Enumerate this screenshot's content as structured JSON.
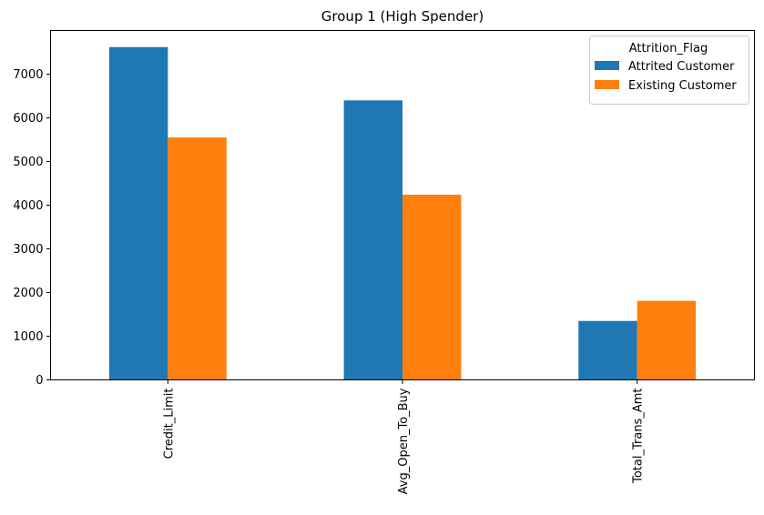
{
  "chart_data": {
    "type": "bar",
    "title": "Group 1 (High Spender)",
    "xlabel": "",
    "ylabel": "",
    "categories": [
      "Credit_Limit",
      "Avg_Open_To_Buy",
      "Total_Trans_Amt"
    ],
    "series": [
      {
        "name": "Attrited Customer",
        "color": "#1f77b4",
        "values": [
          7620,
          6400,
          1350
        ]
      },
      {
        "name": "Existing Customer",
        "color": "#ff7f0e",
        "values": [
          5550,
          4240,
          1810
        ]
      }
    ],
    "ylim": [
      0,
      8000
    ],
    "yticks": [
      0,
      1000,
      2000,
      3000,
      4000,
      5000,
      6000,
      7000
    ],
    "ytick_labels": [
      "0",
      "1000",
      "2000",
      "3000",
      "4000",
      "5000",
      "6000",
      "7000"
    ],
    "legend": {
      "title": "Attrition_Flag",
      "placement": "upper right"
    },
    "grid": false
  }
}
